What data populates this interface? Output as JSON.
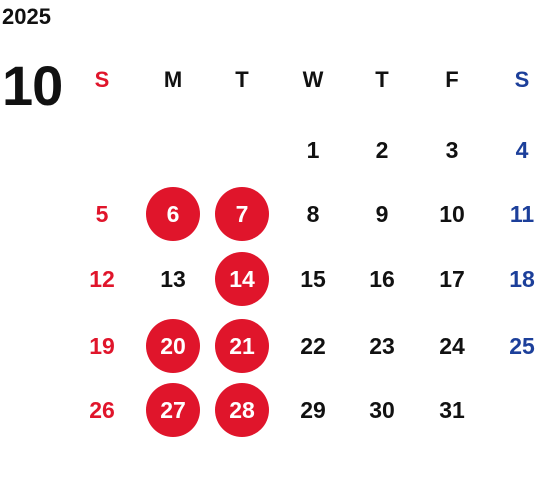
{
  "year": "2025",
  "month": "10",
  "colors": {
    "sunday": "#e0152b",
    "saturday": "#1c3f9a",
    "holiday_circle": "#e0152b",
    "text": "#111111"
  },
  "weekdays": [
    "S",
    "M",
    "T",
    "W",
    "T",
    "F",
    "S"
  ],
  "weeks": [
    [
      "",
      "",
      "",
      "1",
      "2",
      "3",
      "4"
    ],
    [
      "5",
      "6",
      "7",
      "8",
      "9",
      "10",
      "11"
    ],
    [
      "12",
      "13",
      "14",
      "15",
      "16",
      "17",
      "18"
    ],
    [
      "19",
      "20",
      "21",
      "22",
      "23",
      "24",
      "25"
    ],
    [
      "26",
      "27",
      "28",
      "29",
      "30",
      "31",
      ""
    ]
  ],
  "highlighted_days": [
    "6",
    "7",
    "14",
    "20",
    "21",
    "27",
    "28"
  ]
}
